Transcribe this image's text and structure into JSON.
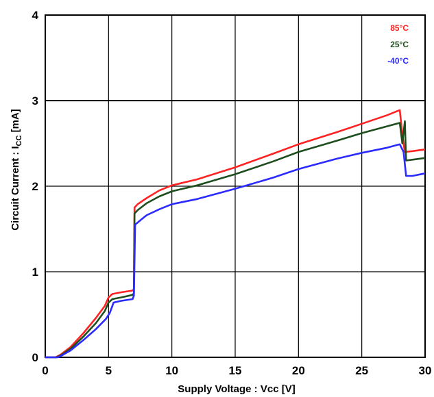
{
  "chart_data": {
    "type": "line",
    "title": "",
    "xlabel": "Supply Voltage : Vcc [V]",
    "ylabel_parts": {
      "main": "Circuit Current : I",
      "sub": "CC",
      "unit": " [mA]"
    },
    "xlim": [
      0,
      30
    ],
    "ylim": [
      0,
      4
    ],
    "xticks": [
      0,
      5,
      10,
      15,
      20,
      25,
      30
    ],
    "yticks": [
      0,
      1,
      2,
      3,
      4
    ],
    "grid": true,
    "legend_position": "top-right",
    "series": [
      {
        "name": "85°C",
        "color": "#ff2222",
        "points": [
          [
            0,
            0
          ],
          [
            0.8,
            0
          ],
          [
            1.2,
            0.03
          ],
          [
            2,
            0.12
          ],
          [
            3,
            0.28
          ],
          [
            4,
            0.46
          ],
          [
            4.7,
            0.6
          ],
          [
            5,
            0.7
          ],
          [
            5.3,
            0.74
          ],
          [
            6,
            0.76
          ],
          [
            6.9,
            0.78
          ],
          [
            7.0,
            0.8
          ],
          [
            7.05,
            1.75
          ],
          [
            7.3,
            1.79
          ],
          [
            8,
            1.86
          ],
          [
            9,
            1.95
          ],
          [
            10,
            2.01
          ],
          [
            12,
            2.08
          ],
          [
            15,
            2.22
          ],
          [
            18,
            2.38
          ],
          [
            20,
            2.49
          ],
          [
            23,
            2.63
          ],
          [
            25,
            2.73
          ],
          [
            27,
            2.83
          ],
          [
            28,
            2.89
          ],
          [
            28.2,
            2.6
          ],
          [
            28.4,
            2.4
          ],
          [
            29,
            2.41
          ],
          [
            30,
            2.43
          ]
        ]
      },
      {
        "name": "25°C",
        "color": "#1e4d1e",
        "points": [
          [
            0,
            0
          ],
          [
            0.9,
            0
          ],
          [
            1.3,
            0.03
          ],
          [
            2,
            0.1
          ],
          [
            3,
            0.24
          ],
          [
            4,
            0.4
          ],
          [
            4.7,
            0.54
          ],
          [
            5,
            0.64
          ],
          [
            5.3,
            0.68
          ],
          [
            6,
            0.7
          ],
          [
            6.9,
            0.73
          ],
          [
            7.0,
            0.75
          ],
          [
            7.05,
            1.68
          ],
          [
            7.3,
            1.72
          ],
          [
            8,
            1.8
          ],
          [
            9,
            1.88
          ],
          [
            10,
            1.94
          ],
          [
            12,
            2.01
          ],
          [
            15,
            2.14
          ],
          [
            18,
            2.29
          ],
          [
            20,
            2.4
          ],
          [
            23,
            2.53
          ],
          [
            25,
            2.62
          ],
          [
            27,
            2.7
          ],
          [
            28,
            2.74
          ],
          [
            28.2,
            2.5
          ],
          [
            28.4,
            2.76
          ],
          [
            28.5,
            2.3
          ],
          [
            29,
            2.31
          ],
          [
            30,
            2.33
          ]
        ]
      },
      {
        "name": "-40°C",
        "color": "#2b2bff",
        "points": [
          [
            0,
            0
          ],
          [
            1.0,
            0
          ],
          [
            1.4,
            0.03
          ],
          [
            2,
            0.08
          ],
          [
            3,
            0.2
          ],
          [
            4,
            0.33
          ],
          [
            4.8,
            0.45
          ],
          [
            5.1,
            0.52
          ],
          [
            5.4,
            0.64
          ],
          [
            6,
            0.66
          ],
          [
            6.9,
            0.68
          ],
          [
            7.0,
            0.72
          ],
          [
            7.1,
            1.55
          ],
          [
            7.5,
            1.6
          ],
          [
            8,
            1.66
          ],
          [
            9,
            1.73
          ],
          [
            10,
            1.79
          ],
          [
            12,
            1.85
          ],
          [
            15,
            1.97
          ],
          [
            18,
            2.1
          ],
          [
            20,
            2.2
          ],
          [
            23,
            2.32
          ],
          [
            25,
            2.39
          ],
          [
            27,
            2.45
          ],
          [
            28,
            2.49
          ],
          [
            28.3,
            2.4
          ],
          [
            28.5,
            2.12
          ],
          [
            29,
            2.12
          ],
          [
            30,
            2.15
          ]
        ]
      }
    ]
  }
}
